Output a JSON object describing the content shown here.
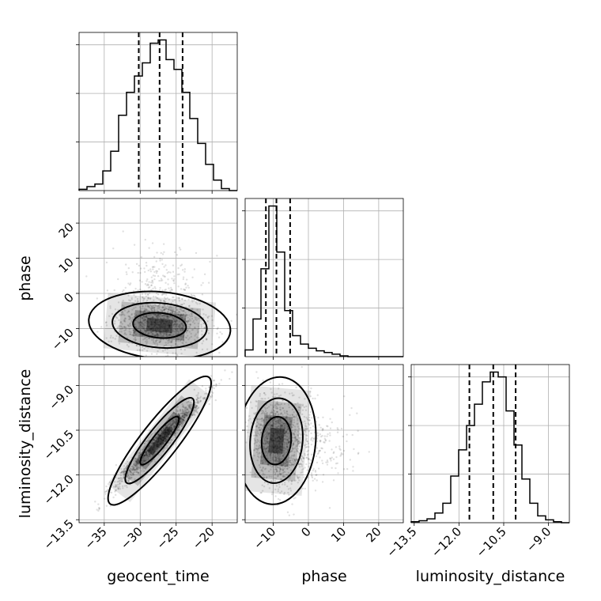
{
  "chart_data": {
    "type": "corner",
    "parameters": [
      "geocent_time",
      "phase",
      "luminosity_distance"
    ],
    "axes": {
      "geocent_time": {
        "label": "geocent_time",
        "range": [
          -38.5,
          -16.5
        ],
        "ticks": [
          -35,
          -30,
          -25,
          -20
        ],
        "tick_labels": [
          "−35",
          "−30",
          "−25",
          "−20"
        ]
      },
      "phase": {
        "label": "phase",
        "range": [
          -18,
          27
        ],
        "ticks": [
          -10,
          0,
          10,
          20
        ],
        "tick_labels": [
          "−10",
          "0",
          "10",
          "20"
        ]
      },
      "luminosity_distance": {
        "label": "luminosity_distance",
        "range": [
          -13.6,
          -8.3
        ],
        "ticks": [
          -13.5,
          -12.0,
          -10.5,
          -9.0
        ],
        "tick_labels": [
          "−13.5",
          "−12.0",
          "−10.5",
          "−9.0"
        ]
      }
    },
    "histograms": {
      "geocent_time": {
        "edges": [
          -38.5,
          -37.4,
          -36.3,
          -35.2,
          -34.1,
          -33.0,
          -31.9,
          -30.8,
          -29.7,
          -28.6,
          -27.5,
          -26.4,
          -25.3,
          -24.2,
          -23.1,
          -22.0,
          -20.9,
          -19.8,
          -18.7,
          -17.6,
          -16.5
        ],
        "counts": [
          2,
          6,
          10,
          30,
          60,
          115,
          150,
          175,
          195,
          225,
          230,
          200,
          185,
          150,
          110,
          72,
          40,
          16,
          3,
          0
        ],
        "quantiles": [
          -30.2,
          -27.3,
          -24.1
        ]
      },
      "phase": {
        "edges": [
          -18,
          -15.75,
          -13.5,
          -11.25,
          -9,
          -6.75,
          -4.5,
          -2.25,
          0,
          2.25,
          4.5,
          6.75,
          9,
          11.25,
          13.5,
          15.75,
          18,
          20.25,
          22.5,
          24.75,
          27
        ],
        "counts": [
          8,
          45,
          105,
          180,
          125,
          55,
          25,
          15,
          10,
          7,
          5,
          3,
          1,
          0,
          0,
          0,
          0,
          0,
          0,
          0
        ],
        "quantiles": [
          -12.1,
          -9.1,
          -5.2
        ]
      },
      "luminosity_distance": {
        "edges": [
          -13.6,
          -13.335,
          -13.07,
          -12.805,
          -12.54,
          -12.275,
          -12.01,
          -11.745,
          -11.48,
          -11.215,
          -10.95,
          -10.685,
          -10.42,
          -10.155,
          -9.89,
          -9.625,
          -9.36,
          -9.095,
          -8.83,
          -8.565,
          -8.3
        ],
        "counts": [
          1,
          2,
          4,
          10,
          20,
          48,
          75,
          100,
          122,
          145,
          155,
          150,
          115,
          80,
          45,
          20,
          7,
          3,
          1,
          0
        ],
        "quantiles": [
          -11.65,
          -10.85,
          -10.1
        ]
      }
    },
    "quantiles": [
      0.16,
      0.5,
      0.84
    ],
    "grid": true
  }
}
